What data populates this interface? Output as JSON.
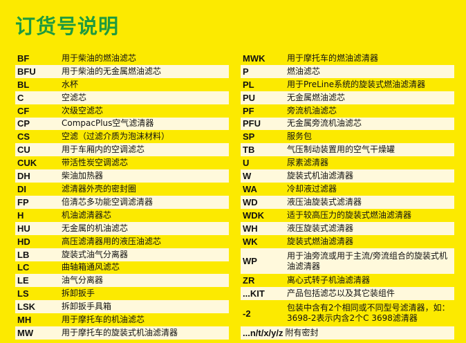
{
  "title": "订货号说明",
  "left": [
    {
      "code": "BF",
      "desc": "用于柴油的燃油滤芯"
    },
    {
      "code": "BFU",
      "desc": "用于柴油的无金属燃油滤芯"
    },
    {
      "code": "BL",
      "desc": "水杯"
    },
    {
      "code": "C",
      "desc": "空滤芯"
    },
    {
      "code": "CF",
      "desc": "次级空滤芯"
    },
    {
      "code": "CP",
      "desc": "CompacPlus空气滤清器"
    },
    {
      "code": "CS",
      "desc": "空滤（过滤介质为泡沫材料）"
    },
    {
      "code": "CU",
      "desc": "用于车厢内的空调滤芯"
    },
    {
      "code": "CUK",
      "desc": "带活性炭空调滤芯"
    },
    {
      "code": "DH",
      "desc": "柴油加热器"
    },
    {
      "code": "DI",
      "desc": "滤清器外壳的密封圈"
    },
    {
      "code": "FP",
      "desc": "倍清芯多功能空调滤清器"
    },
    {
      "code": "H",
      "desc": "机油滤清器芯"
    },
    {
      "code": "HU",
      "desc": "无金属的机油滤芯"
    },
    {
      "code": "HD",
      "desc": "高压滤清器用的液压油滤芯"
    },
    {
      "code": "LB",
      "desc": "旋装式油气分离器"
    },
    {
      "code": "LC",
      "desc": "曲轴箱通风滤芯"
    },
    {
      "code": "LE",
      "desc": "油气分离器"
    },
    {
      "code": "LS",
      "desc": "拆卸扳手"
    },
    {
      "code": "LSK",
      "desc": "拆卸扳手具箱"
    },
    {
      "code": "MH",
      "desc": "用于摩托车的机油滤芯"
    },
    {
      "code": "MW",
      "desc": "用于摩托车的旋装式机油滤清器"
    }
  ],
  "right": [
    {
      "code": "MWK",
      "desc": "用于摩托车的燃油滤清器"
    },
    {
      "code": "P",
      "desc": "燃油滤芯"
    },
    {
      "code": "PL",
      "desc": "用于PreLine系统的旋装式燃油滤清器"
    },
    {
      "code": "PU",
      "desc": "无金属燃油滤芯"
    },
    {
      "code": "PF",
      "desc": "旁流机油滤芯"
    },
    {
      "code": "PFU",
      "desc": "无金属旁流机油滤芯"
    },
    {
      "code": "SP",
      "desc": "服务包"
    },
    {
      "code": "TB",
      "desc": "气压制动装置用的空气干燥罐"
    },
    {
      "code": "U",
      "desc": "尿素滤清器"
    },
    {
      "code": "W",
      "desc": "旋装式机油滤清器"
    },
    {
      "code": "WA",
      "desc": "冷却液过滤器"
    },
    {
      "code": "WD",
      "desc": "液压油旋装式滤清器"
    },
    {
      "code": "WDK",
      "desc": "适于较高压力的旋装式燃油滤清器"
    },
    {
      "code": "WH",
      "desc": "液压旋装式滤清器"
    },
    {
      "code": "WK",
      "desc": "旋装式燃油滤清器"
    },
    {
      "code": "WP",
      "desc": "用于油旁流或用于主流/旁流组合的旋装式机油滤清器"
    },
    {
      "code": "ZR",
      "desc": "离心式转子机油滤清器"
    },
    {
      "code": "...KIT",
      "desc": "产品包括滤芯以及其它装组件"
    },
    {
      "code": "-2",
      "desc": "包装中含有2个相同或不同型号滤清器，如：3698-2表示内含2个C 3698滤清器"
    },
    {
      "code": "...n/t/x/y/z",
      "desc": "附有密封"
    }
  ]
}
